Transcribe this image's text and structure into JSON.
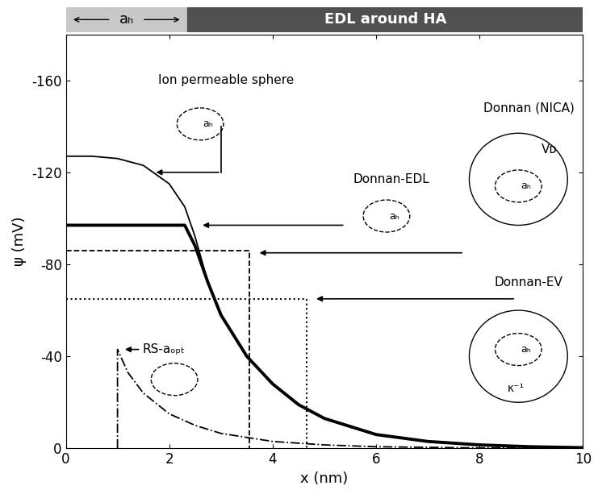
{
  "chart_data": {
    "type": "line",
    "xlabel": "x (nm)",
    "ylabel": "ψ (mV)",
    "xlim": [
      0,
      10
    ],
    "xticks": [
      0,
      2,
      4,
      6,
      8,
      10
    ],
    "ylim": [
      0,
      -180
    ],
    "yticks": [
      0,
      -40,
      -80,
      -120,
      -160
    ],
    "top_bar": {
      "left_label": "aₕ",
      "right_label": "EDL around HA",
      "a_h_end": 2.35
    },
    "series": [
      {
        "name": "Ion permeable sphere",
        "color": "#000000",
        "line_style": "solid",
        "x": [
          0,
          0.5,
          1,
          1.5,
          2,
          2.3,
          2.5,
          2.75,
          3,
          3.5,
          4,
          4.5,
          5,
          6,
          7,
          8,
          9,
          10
        ],
        "values": [
          -127,
          -127,
          -126,
          -123,
          -115,
          -105,
          -92,
          -72,
          -58,
          -40,
          -28,
          -19,
          -13,
          -6,
          -3,
          -1.5,
          -0.7,
          -0.3
        ]
      },
      {
        "name": "Donnan-EDL",
        "color": "#000000",
        "line_style": "thick",
        "x": [
          0,
          2.3,
          2.5,
          2.75,
          3,
          3.5,
          4,
          4.5,
          5,
          6,
          7,
          8,
          9,
          10
        ],
        "values": [
          -97,
          -97,
          -88,
          -72,
          -58,
          -40,
          -28,
          -19,
          -13,
          -6,
          -3,
          -1.5,
          -0.7,
          -0.3
        ]
      },
      {
        "name": "Donnan (NICA)",
        "color": "#000000",
        "line_style": "dashed",
        "x": [
          0,
          3.55,
          3.55
        ],
        "values": [
          -86,
          -86,
          0
        ]
      },
      {
        "name": "Donnan-EV",
        "color": "#000000",
        "line_style": "dotted",
        "x": [
          0,
          4.65,
          4.65
        ],
        "values": [
          -65,
          -65,
          0
        ]
      },
      {
        "name": "RS-aₒₚₜ",
        "color": "#000000",
        "line_style": "dashdot",
        "x": [
          1,
          1,
          1.2,
          1.5,
          2,
          2.5,
          3,
          4,
          5,
          6,
          8,
          10
        ],
        "values": [
          0,
          -43,
          -33,
          -24,
          -15,
          -10,
          -6.5,
          -3,
          -1.5,
          -0.7,
          -0.2,
          0
        ]
      }
    ],
    "icon_labels": {
      "a_h": "aₕ",
      "volume": "Vᴅ",
      "debye": "κ⁻¹"
    }
  }
}
